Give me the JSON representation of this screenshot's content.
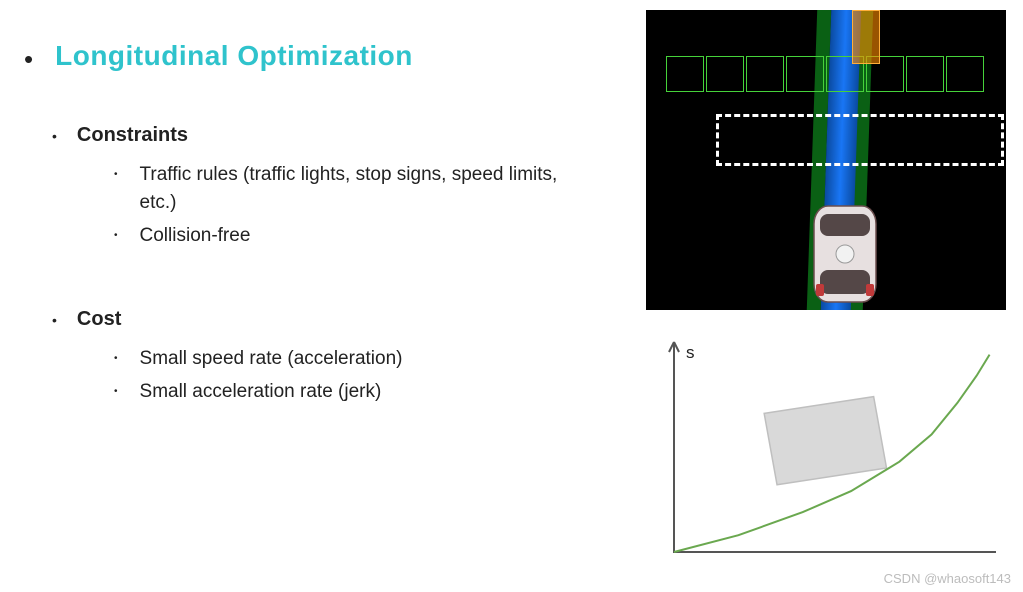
{
  "title": {
    "text": "Longitudinal Optimization",
    "color": "#2fc3cc"
  },
  "sections": [
    {
      "heading": "Constraints",
      "items": [
        "Traffic rules (traffic lights, stop signs, speed limits, etc.)",
        "Collision-free"
      ]
    },
    {
      "heading": "Cost",
      "items": [
        "Small speed rate (acceleration)",
        "Small acceleration rate (jerk)"
      ]
    }
  ],
  "viz": {
    "background": "#000000",
    "lane_color": "#1976f5",
    "lane_edge_color": "#0b6a16",
    "grid_color": "#46d23a",
    "dashed_color": "#ffffff",
    "obstacle_color": "#ff8c00",
    "car_body_color": "#e7e0e0",
    "car_accent_color": "#c03a3a"
  },
  "chart": {
    "type": "line",
    "y_label": "s",
    "y_label_fontsize": 17,
    "axis_color": "#555555",
    "line_color": "#6aa84f",
    "obstacle_fill": "#d9d9d9",
    "obstacle_stroke": "#bfbfbf",
    "background": "#ffffff",
    "x_range": [
      0,
      10
    ],
    "y_range": [
      0,
      10
    ],
    "line_points": [
      [
        0,
        0
      ],
      [
        2,
        0.8
      ],
      [
        4,
        1.9
      ],
      [
        5.5,
        2.9
      ],
      [
        7,
        4.3
      ],
      [
        8,
        5.6
      ],
      [
        8.8,
        7.1
      ],
      [
        9.4,
        8.4
      ],
      [
        9.8,
        9.4
      ]
    ],
    "obstacle_poly": [
      [
        3.2,
        3.2
      ],
      [
        6.6,
        4.0
      ],
      [
        6.2,
        7.4
      ],
      [
        2.8,
        6.6
      ]
    ]
  },
  "watermark": "CSDN @whaosoft143"
}
